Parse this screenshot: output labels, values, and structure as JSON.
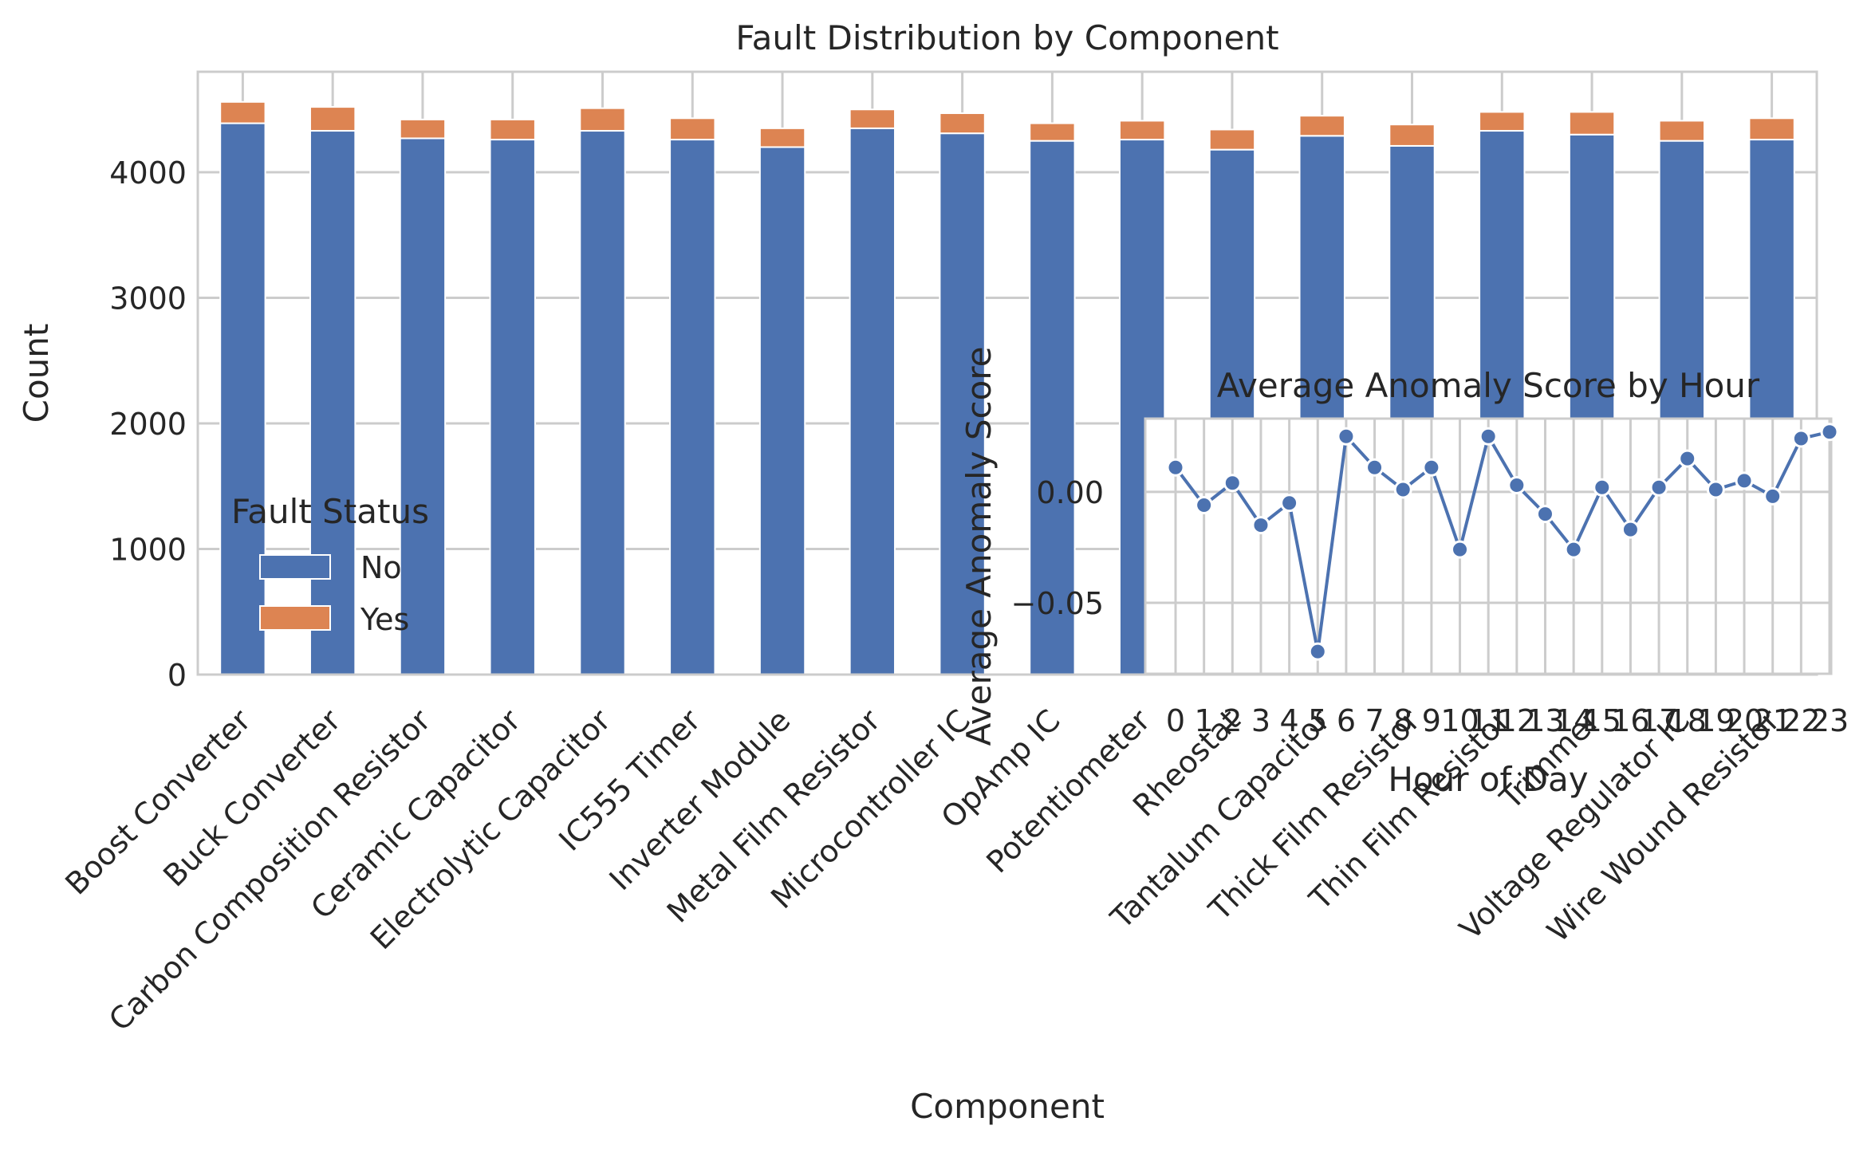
{
  "colors": {
    "no": "#4c72b0",
    "yes": "#dd8452",
    "grid": "#cccccc",
    "frame": "#cccccc",
    "text": "#262626"
  },
  "chart_data": [
    {
      "type": "bar",
      "stacked": true,
      "title": "Fault Distribution by Component",
      "xlabel": "Component",
      "ylabel": "Count",
      "ylim": [
        0,
        4800
      ],
      "yticks": [
        0,
        1000,
        2000,
        3000,
        4000
      ],
      "grid": true,
      "legend": {
        "title": "Fault Status",
        "placement": "lower-left"
      },
      "categories": [
        "Boost Converter",
        "Buck Converter",
        "Carbon Composition Resistor",
        "Ceramic Capacitor",
        "Electrolytic Capacitor",
        "IC555 Timer",
        "Inverter Module",
        "Metal Film Resistor",
        "Microcontroller IC",
        "OpAmp IC",
        "Potentiometer",
        "Rheostat",
        "Tantalum Capacitor",
        "Thick Film Resistor",
        "Thin Film Resistor",
        "Trimmer",
        "Voltage Regulator IC",
        "Wire Wound Resistor"
      ],
      "series": [
        {
          "name": "No",
          "values": [
            4390,
            4330,
            4270,
            4260,
            4330,
            4260,
            4200,
            4350,
            4310,
            4250,
            4260,
            4180,
            4290,
            4210,
            4330,
            4300,
            4250,
            4260
          ]
        },
        {
          "name": "Yes",
          "values": [
            170,
            190,
            150,
            160,
            180,
            170,
            150,
            150,
            160,
            140,
            150,
            160,
            160,
            170,
            150,
            180,
            160,
            170
          ]
        }
      ]
    },
    {
      "type": "line",
      "title": "Average Anomaly Score by Hour",
      "xlabel": "Hour of Day",
      "ylabel": "Average Anomaly Score",
      "ylim": [
        -0.082,
        0.033
      ],
      "yticks": [
        0.0,
        -0.05
      ],
      "ytick_labels": [
        "0.00",
        "−0.05"
      ],
      "grid": true,
      "x": [
        0,
        1,
        2,
        3,
        4,
        5,
        6,
        7,
        8,
        9,
        10,
        11,
        12,
        13,
        14,
        15,
        16,
        17,
        18,
        19,
        20,
        21,
        22,
        23
      ],
      "values": [
        0.011,
        -0.006,
        0.004,
        -0.015,
        -0.005,
        -0.072,
        0.025,
        0.011,
        0.001,
        0.011,
        -0.026,
        0.025,
        0.003,
        -0.01,
        -0.026,
        0.002,
        -0.017,
        0.002,
        0.015,
        0.001,
        0.005,
        -0.002,
        0.024,
        0.027
      ]
    }
  ]
}
